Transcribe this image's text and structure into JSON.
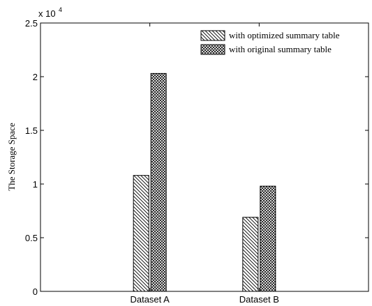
{
  "chart_data": {
    "type": "bar",
    "categories": [
      "Dataset A",
      "Dataset B"
    ],
    "series": [
      {
        "name": "with optimized summary table",
        "values": [
          10800,
          6900
        ],
        "pattern": "diagonal-hatch"
      },
      {
        "name": "with original summary table",
        "values": [
          20300,
          9800
        ],
        "pattern": "crosshatch"
      }
    ],
    "ylabel": "The Storage Space",
    "xlabel": "",
    "ylim": [
      0,
      25000
    ],
    "yticks": [
      0,
      5000,
      10000,
      15000,
      20000,
      25000
    ],
    "ytick_labels": [
      "0",
      "0.5",
      "1",
      "1.5",
      "2",
      "2.5"
    ],
    "exponent_label": {
      "base": "x 10",
      "power": "4"
    },
    "legend_position": "top-right",
    "grid": false
  }
}
